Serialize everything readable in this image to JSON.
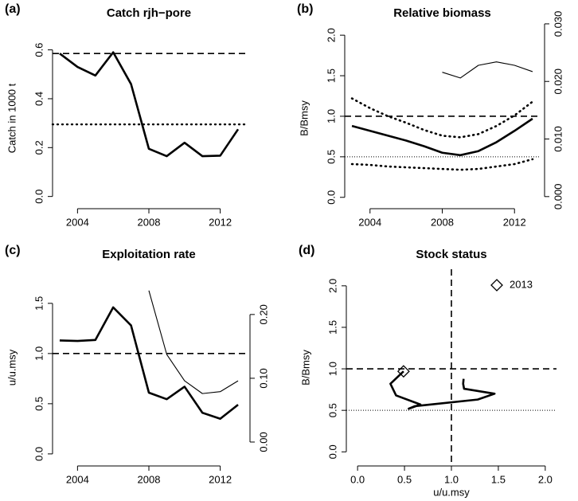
{
  "chart_data": [
    {
      "type": "line",
      "panel_label": "(a)",
      "title": "Catch rjh−pore",
      "ylabel": "Catch in 1000 t",
      "x": [
        2003,
        2004,
        2005,
        2006,
        2007,
        2008,
        2009,
        2010,
        2011,
        2012,
        2013
      ],
      "xlim": [
        2002.6,
        2013.4
      ],
      "xticks": [
        2004,
        2008,
        2012
      ],
      "ylim": [
        -0.05,
        0.69
      ],
      "yticks": [
        {
          "value": 0,
          "label": "0.0"
        },
        0.2,
        0.4,
        0.6
      ],
      "series": [
        {
          "color": "#000000",
          "style": "solid",
          "width": "thick",
          "values": [
            0.585,
            0.53,
            0.495,
            0.59,
            0.46,
            0.195,
            0.165,
            0.22,
            0.165,
            0.167,
            0.275
          ]
        }
      ],
      "reference_lines": [
        {
          "axis": "y",
          "value": 0.585,
          "style": "dashed"
        },
        {
          "axis": "y",
          "value": 0.295,
          "style": "dotted"
        }
      ]
    },
    {
      "type": "line",
      "panel_label": "(b)",
      "title": "Relative biomass",
      "ylabel": "B/Bmsy",
      "x": [
        2003,
        2004,
        2005,
        2006,
        2007,
        2008,
        2009,
        2010,
        2011,
        2012,
        2013
      ],
      "xlim": [
        2002.6,
        2013.4
      ],
      "xticks": [
        2004,
        2008,
        2012
      ],
      "ylim": [
        -0.14,
        2.09
      ],
      "yticks": [
        {
          "value": 0,
          "label": "0.0"
        },
        0.5,
        {
          "value": 1,
          "label": "1.0"
        },
        1.5,
        {
          "value": 2,
          "label": "2.0"
        }
      ],
      "y2lim": [
        -0.0021,
        0.0293
      ],
      "y2ticks": [
        {
          "value": 0,
          "label": "0.000"
        },
        {
          "value": 0.01,
          "label": "0.010"
        },
        {
          "value": 0.02,
          "label": "0.020"
        },
        {
          "value": 0.03,
          "label": "0.030"
        }
      ],
      "series": [
        {
          "color": "#000000",
          "style": "solid",
          "width": "thick",
          "values": [
            0.88,
            0.82,
            0.76,
            0.7,
            0.63,
            0.55,
            0.52,
            0.57,
            0.68,
            0.82,
            0.97
          ]
        },
        {
          "color": "#000000",
          "style": "dotted",
          "width": "thick",
          "values": [
            1.22,
            1.1,
            1.0,
            0.92,
            0.83,
            0.76,
            0.74,
            0.78,
            0.88,
            1.01,
            1.18
          ]
        },
        {
          "color": "#000000",
          "style": "dotted",
          "width": "thick",
          "values": [
            0.41,
            0.4,
            0.38,
            0.37,
            0.36,
            0.35,
            0.34,
            0.35,
            0.38,
            0.41,
            0.47
          ]
        },
        {
          "color": "#000000",
          "style": "solid",
          "width": "thin",
          "axis": "y2",
          "values": [
            null,
            null,
            null,
            null,
            null,
            0.0216,
            0.0206,
            0.0228,
            0.0234,
            0.0228,
            0.0217
          ]
        }
      ],
      "reference_lines": [
        {
          "axis": "y",
          "value": 1,
          "style": "dashed"
        },
        {
          "axis": "y",
          "value": 0.5,
          "style": "fine-dotted"
        }
      ]
    },
    {
      "type": "line",
      "panel_label": "(c)",
      "title": "Exploitation rate",
      "ylabel": "u/u.msy",
      "x": [
        2003,
        2004,
        2005,
        2006,
        2007,
        2008,
        2009,
        2010,
        2011,
        2012,
        2013
      ],
      "xlim": [
        2002.6,
        2013.4
      ],
      "xticks": [
        2004,
        2008,
        2012
      ],
      "ylim": [
        -0.12,
        1.84
      ],
      "yticks": [
        {
          "value": 0,
          "label": "0.0"
        },
        0.5,
        {
          "value": 1,
          "label": "1.0"
        },
        1.5
      ],
      "y2lim": [
        -0.0375,
        0.271
      ],
      "y2ticks": [
        {
          "value": 0,
          "label": "0.00"
        },
        {
          "value": 0.1,
          "label": "0.10"
        },
        {
          "value": 0.2,
          "label": "0.20"
        }
      ],
      "series": [
        {
          "color": "#000000",
          "style": "solid",
          "width": "thick",
          "values": [
            1.13,
            1.125,
            1.135,
            1.46,
            1.28,
            0.61,
            0.545,
            0.67,
            0.41,
            0.35,
            0.49
          ]
        },
        {
          "color": "#000000",
          "style": "solid",
          "width": "thin",
          "axis": "y2",
          "values": [
            null,
            null,
            null,
            null,
            null,
            0.2375,
            0.1375,
            0.096,
            0.076,
            0.079,
            0.096
          ]
        }
      ],
      "reference_lines": [
        {
          "axis": "y",
          "value": 1,
          "style": "dashed"
        }
      ]
    },
    {
      "type": "path",
      "panel_label": "(d)",
      "title": "Stock status",
      "ylabel": "B/Bmsy",
      "xlabel": "u/u.msy",
      "x": [
        1.13,
        1.125,
        1.135,
        1.46,
        1.28,
        0.61,
        0.545,
        0.67,
        0.41,
        0.35,
        0.49
      ],
      "xlim": [
        -0.12,
        2.12
      ],
      "xticks": [
        {
          "value": 0,
          "label": "0.0"
        },
        0.5,
        {
          "value": 1,
          "label": "1.0"
        },
        1.5,
        {
          "value": 2,
          "label": "2.0"
        }
      ],
      "ylim": [
        -0.17,
        2.2
      ],
      "yticks": [
        {
          "value": 0,
          "label": "0.0"
        },
        0.5,
        {
          "value": 1,
          "label": "1.0"
        },
        1.5,
        {
          "value": 2,
          "label": "2.0"
        }
      ],
      "series": [
        {
          "color": "#000000",
          "style": "solid",
          "width": "thick",
          "values": [
            0.88,
            0.82,
            0.76,
            0.7,
            0.63,
            0.55,
            0.52,
            0.57,
            0.68,
            0.82,
            0.97
          ]
        }
      ],
      "marker": "diamond",
      "marker_label": "2013",
      "legend": "topright",
      "reference_lines": [
        {
          "axis": "y",
          "value": 1,
          "style": "dashed"
        },
        {
          "axis": "y",
          "value": 0.5,
          "style": "fine-dotted"
        },
        {
          "axis": "x",
          "value": 1,
          "style": "dashed"
        }
      ]
    }
  ]
}
